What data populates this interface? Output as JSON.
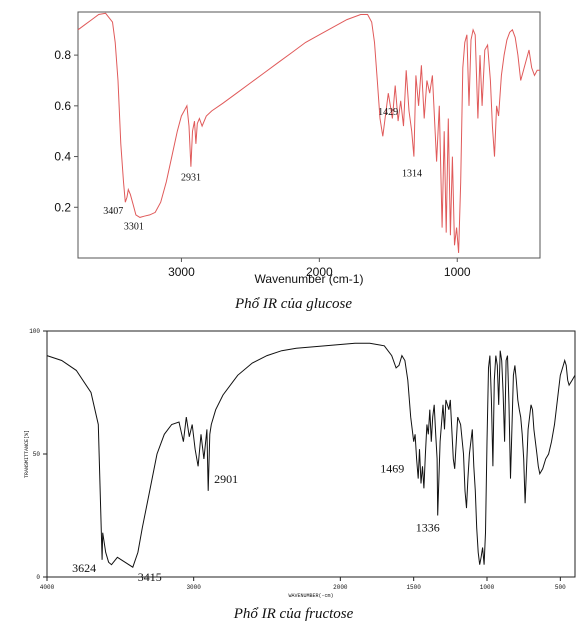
{
  "captions": {
    "glucose": "Phổ IR của glucose",
    "fructose": "Phổ IR của fructose"
  },
  "chart_data": [
    {
      "type": "line",
      "title": "",
      "xlabel": "Wavenumber (cm-1)",
      "ylabel": "",
      "xlim": [
        3750,
        400
      ],
      "ylim": [
        0.0,
        0.97
      ],
      "x_ticks": [
        3000,
        2000,
        1000
      ],
      "y_ticks": [
        0.2,
        0.4,
        0.6,
        0.8
      ],
      "x_tick_labels": [
        "3000",
        "2000",
        "1000"
      ],
      "y_tick_labels": [
        "0.2",
        "0.4",
        "0.6",
        "0.8"
      ],
      "color": "#e05a5a",
      "grid": false,
      "legend": "none",
      "series": [
        {
          "points": [
            [
              3750,
              0.9
            ],
            [
              3700,
              0.92
            ],
            [
              3650,
              0.94
            ],
            [
              3600,
              0.96
            ],
            [
              3550,
              0.965
            ],
            [
              3500,
              0.93
            ],
            [
              3480,
              0.85
            ],
            [
              3460,
              0.7
            ],
            [
              3440,
              0.45
            ],
            [
              3420,
              0.3
            ],
            [
              3407,
              0.22
            ],
            [
              3395,
              0.24
            ],
            [
              3385,
              0.27
            ],
            [
              3370,
              0.25
            ],
            [
              3350,
              0.21
            ],
            [
              3330,
              0.17
            ],
            [
              3301,
              0.16
            ],
            [
              3270,
              0.165
            ],
            [
              3230,
              0.17
            ],
            [
              3190,
              0.18
            ],
            [
              3150,
              0.22
            ],
            [
              3110,
              0.3
            ],
            [
              3070,
              0.4
            ],
            [
              3030,
              0.5
            ],
            [
              3000,
              0.56
            ],
            [
              2980,
              0.58
            ],
            [
              2960,
              0.6
            ],
            [
              2945,
              0.52
            ],
            [
              2931,
              0.36
            ],
            [
              2920,
              0.5
            ],
            [
              2905,
              0.54
            ],
            [
              2895,
              0.45
            ],
            [
              2885,
              0.53
            ],
            [
              2870,
              0.55
            ],
            [
              2850,
              0.52
            ],
            [
              2820,
              0.56
            ],
            [
              2780,
              0.58
            ],
            [
              2700,
              0.61
            ],
            [
              2600,
              0.65
            ],
            [
              2500,
              0.69
            ],
            [
              2400,
              0.73
            ],
            [
              2300,
              0.77
            ],
            [
              2200,
              0.81
            ],
            [
              2100,
              0.85
            ],
            [
              2000,
              0.88
            ],
            [
              1900,
              0.91
            ],
            [
              1800,
              0.94
            ],
            [
              1700,
              0.96
            ],
            [
              1650,
              0.96
            ],
            [
              1620,
              0.93
            ],
            [
              1600,
              0.85
            ],
            [
              1580,
              0.7
            ],
            [
              1560,
              0.55
            ],
            [
              1540,
              0.48
            ],
            [
              1500,
              0.65
            ],
            [
              1470,
              0.55
            ],
            [
              1450,
              0.68
            ],
            [
              1429,
              0.54
            ],
            [
              1410,
              0.62
            ],
            [
              1390,
              0.52
            ],
            [
              1370,
              0.74
            ],
            [
              1350,
              0.58
            ],
            [
              1330,
              0.5
            ],
            [
              1314,
              0.4
            ],
            [
              1300,
              0.72
            ],
            [
              1280,
              0.6
            ],
            [
              1260,
              0.76
            ],
            [
              1240,
              0.55
            ],
            [
              1220,
              0.7
            ],
            [
              1200,
              0.65
            ],
            [
              1180,
              0.72
            ],
            [
              1150,
              0.38
            ],
            [
              1130,
              0.6
            ],
            [
              1110,
              0.12
            ],
            [
              1095,
              0.5
            ],
            [
              1080,
              0.1
            ],
            [
              1065,
              0.55
            ],
            [
              1050,
              0.09
            ],
            [
              1035,
              0.4
            ],
            [
              1020,
              0.05
            ],
            [
              1005,
              0.12
            ],
            [
              990,
              0.02
            ],
            [
              975,
              0.3
            ],
            [
              960,
              0.75
            ],
            [
              945,
              0.85
            ],
            [
              930,
              0.88
            ],
            [
              915,
              0.6
            ],
            [
              900,
              0.86
            ],
            [
              885,
              0.9
            ],
            [
              870,
              0.88
            ],
            [
              850,
              0.55
            ],
            [
              835,
              0.8
            ],
            [
              820,
              0.6
            ],
            [
              800,
              0.82
            ],
            [
              780,
              0.84
            ],
            [
              760,
              0.7
            ],
            [
              745,
              0.52
            ],
            [
              730,
              0.4
            ],
            [
              715,
              0.6
            ],
            [
              700,
              0.56
            ],
            [
              680,
              0.72
            ],
            [
              660,
              0.8
            ],
            [
              640,
              0.86
            ],
            [
              620,
              0.89
            ],
            [
              600,
              0.9
            ],
            [
              580,
              0.87
            ],
            [
              560,
              0.8
            ],
            [
              540,
              0.7
            ],
            [
              520,
              0.74
            ],
            [
              500,
              0.78
            ],
            [
              480,
              0.82
            ],
            [
              460,
              0.75
            ],
            [
              440,
              0.72
            ],
            [
              420,
              0.74
            ],
            [
              400,
              0.74
            ]
          ]
        }
      ],
      "annotations": [
        {
          "text": "3407",
          "x": 3407,
          "y": 0.22
        },
        {
          "text": "3301",
          "x": 3301,
          "y": 0.16
        },
        {
          "text": "2931",
          "x": 2931,
          "y": 0.36
        },
        {
          "text": "1429",
          "x": 1429,
          "y": 0.54
        },
        {
          "text": "1314",
          "x": 1314,
          "y": 0.4
        }
      ]
    },
    {
      "type": "line",
      "title": "",
      "xlabel": "WAVENUMBER(-cm)",
      "ylabel": "TRANSMITTANCE[%]",
      "xlim": [
        4000,
        400
      ],
      "ylim": [
        0,
        100
      ],
      "x_ticks": [
        4000,
        3000,
        2000,
        1500,
        1000,
        500
      ],
      "y_ticks": [
        0,
        50,
        100
      ],
      "x_tick_labels": [
        "4000",
        "3000",
        "2000",
        "1500",
        "1000",
        "500"
      ],
      "y_tick_labels": [
        "0",
        "50",
        "100"
      ],
      "color": "#111111",
      "grid": false,
      "legend": "none",
      "series": [
        {
          "points": [
            [
              4000,
              90
            ],
            [
              3900,
              88
            ],
            [
              3800,
              84
            ],
            [
              3700,
              75
            ],
            [
              3650,
              62
            ],
            [
              3624,
              7
            ],
            [
              3620,
              18
            ],
            [
              3600,
              10
            ],
            [
              3580,
              6
            ],
            [
              3560,
              5
            ],
            [
              3520,
              8
            ],
            [
              3415,
              4
            ],
            [
              3380,
              10
            ],
            [
              3350,
              20
            ],
            [
              3300,
              35
            ],
            [
              3250,
              50
            ],
            [
              3200,
              58
            ],
            [
              3150,
              62
            ],
            [
              3100,
              63
            ],
            [
              3070,
              55
            ],
            [
              3050,
              65
            ],
            [
              3030,
              57
            ],
            [
              3010,
              62
            ],
            [
              2990,
              52
            ],
            [
              2970,
              45
            ],
            [
              2950,
              58
            ],
            [
              2930,
              48
            ],
            [
              2910,
              60
            ],
            [
              2901,
              35
            ],
            [
              2890,
              58
            ],
            [
              2880,
              62
            ],
            [
              2850,
              68
            ],
            [
              2800,
              74
            ],
            [
              2700,
              82
            ],
            [
              2600,
              87
            ],
            [
              2500,
              90
            ],
            [
              2400,
              92
            ],
            [
              2300,
              93
            ],
            [
              2200,
              93.5
            ],
            [
              2100,
              94
            ],
            [
              2000,
              94.5
            ],
            [
              1900,
              95
            ],
            [
              1800,
              95
            ],
            [
              1700,
              94
            ],
            [
              1650,
              90
            ],
            [
              1620,
              85
            ],
            [
              1600,
              86
            ],
            [
              1580,
              90
            ],
            [
              1560,
              88
            ],
            [
              1540,
              80
            ],
            [
              1520,
              65
            ],
            [
              1500,
              55
            ],
            [
              1490,
              58
            ],
            [
              1480,
              48
            ],
            [
              1469,
              40
            ],
            [
              1460,
              52
            ],
            [
              1450,
              38
            ],
            [
              1440,
              45
            ],
            [
              1430,
              36
            ],
            [
              1420,
              50
            ],
            [
              1410,
              62
            ],
            [
              1400,
              58
            ],
            [
              1390,
              68
            ],
            [
              1380,
              55
            ],
            [
              1370,
              65
            ],
            [
              1360,
              70
            ],
            [
              1350,
              58
            ],
            [
              1340,
              48
            ],
            [
              1336,
              25
            ],
            [
              1320,
              55
            ],
            [
              1300,
              70
            ],
            [
              1290,
              60
            ],
            [
              1280,
              72
            ],
            [
              1260,
              68
            ],
            [
              1250,
              72
            ],
            [
              1240,
              60
            ],
            [
              1230,
              48
            ],
            [
              1220,
              44
            ],
            [
              1200,
              65
            ],
            [
              1180,
              62
            ],
            [
              1160,
              50
            ],
            [
              1150,
              35
            ],
            [
              1140,
              28
            ],
            [
              1130,
              40
            ],
            [
              1120,
              50
            ],
            [
              1100,
              60
            ],
            [
              1090,
              45
            ],
            [
              1080,
              35
            ],
            [
              1070,
              20
            ],
            [
              1060,
              10
            ],
            [
              1050,
              5
            ],
            [
              1040,
              8
            ],
            [
              1030,
              12
            ],
            [
              1020,
              5
            ],
            [
              1010,
              18
            ],
            [
              1000,
              55
            ],
            [
              990,
              85
            ],
            [
              980,
              90
            ],
            [
              970,
              72
            ],
            [
              960,
              45
            ],
            [
              950,
              80
            ],
            [
              940,
              90
            ],
            [
              930,
              86
            ],
            [
              920,
              70
            ],
            [
              910,
              92
            ],
            [
              900,
              88
            ],
            [
              890,
              75
            ],
            [
              880,
              55
            ],
            [
              870,
              88
            ],
            [
              860,
              90
            ],
            [
              850,
              70
            ],
            [
              840,
              40
            ],
            [
              830,
              60
            ],
            [
              820,
              82
            ],
            [
              810,
              86
            ],
            [
              800,
              80
            ],
            [
              790,
              72
            ],
            [
              780,
              68
            ],
            [
              770,
              65
            ],
            [
              760,
              58
            ],
            [
              750,
              48
            ],
            [
              740,
              30
            ],
            [
              730,
              45
            ],
            [
              720,
              60
            ],
            [
              700,
              70
            ],
            [
              690,
              68
            ],
            [
              680,
              60
            ],
            [
              670,
              55
            ],
            [
              660,
              50
            ],
            [
              650,
              45
            ],
            [
              640,
              42
            ],
            [
              620,
              44
            ],
            [
              600,
              48
            ],
            [
              580,
              50
            ],
            [
              560,
              55
            ],
            [
              540,
              62
            ],
            [
              520,
              72
            ],
            [
              500,
              82
            ],
            [
              480,
              86
            ],
            [
              470,
              88
            ],
            [
              460,
              86
            ],
            [
              450,
              80
            ],
            [
              440,
              78
            ],
            [
              420,
              80
            ],
            [
              400,
              82
            ]
          ]
        }
      ],
      "annotations": [
        {
          "text": "3624",
          "x": 3624,
          "y": 7
        },
        {
          "text": "3415",
          "x": 3415,
          "y": 4
        },
        {
          "text": "2901",
          "x": 2901,
          "y": 35
        },
        {
          "text": "1469",
          "x": 1469,
          "y": 40
        },
        {
          "text": "1336",
          "x": 1336,
          "y": 25
        }
      ]
    }
  ]
}
